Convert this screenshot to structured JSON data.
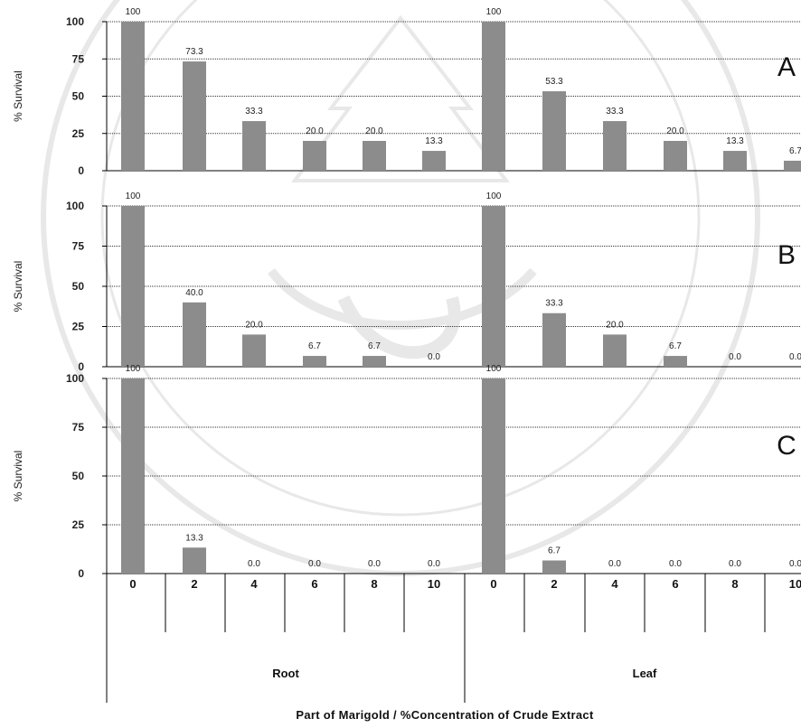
{
  "chart_data": {
    "type": "bar",
    "xlabel": "Part of Marigold  / %Concentration  of  Crude  Extract",
    "groups": [
      "Root",
      "Leaf"
    ],
    "categories": [
      "0",
      "2",
      "4",
      "6",
      "8",
      "10"
    ],
    "ylim": [
      0,
      100
    ],
    "yticks": [
      "0",
      "25",
      "50",
      "75",
      "100"
    ],
    "grid": true,
    "bar_color": "#8c8c8c",
    "panels": [
      {
        "label": "A",
        "ylabel": "% Survival",
        "root": {
          "values": [
            100,
            73.3,
            33.3,
            20.0,
            20.0,
            13.3
          ],
          "labels": [
            "100",
            "73.3",
            "33.3",
            "20.0",
            "20.0",
            "13.3"
          ]
        },
        "leaf": {
          "values": [
            100,
            53.3,
            33.3,
            20.0,
            13.3,
            6.7
          ],
          "labels": [
            "100",
            "53.3",
            "33.3",
            "20.0",
            "13.3",
            "6.7"
          ]
        }
      },
      {
        "label": "B",
        "ylabel": "% Survival",
        "root": {
          "values": [
            100,
            40.0,
            20.0,
            6.7,
            6.7,
            0.0
          ],
          "labels": [
            "100",
            "40.0",
            "20.0",
            "6.7",
            "6.7",
            "0.0"
          ]
        },
        "leaf": {
          "values": [
            100,
            33.3,
            20.0,
            6.7,
            0.0,
            0.0
          ],
          "labels": [
            "100",
            "33.3",
            "20.0",
            "6.7",
            "0.0",
            "0.0"
          ]
        }
      },
      {
        "label": "C",
        "ylabel": "% Survival",
        "root": {
          "values": [
            100,
            13.3,
            0.0,
            0.0,
            0.0,
            0.0
          ],
          "labels": [
            "100",
            "13.3",
            "0.0",
            "0.0",
            "0.0",
            "0.0"
          ]
        },
        "leaf": {
          "values": [
            100,
            6.7,
            0.0,
            0.0,
            0.0,
            0.0
          ],
          "labels": [
            "100",
            "6.7",
            "0.0",
            "0.0",
            "0.0",
            "0.0"
          ]
        }
      }
    ]
  }
}
